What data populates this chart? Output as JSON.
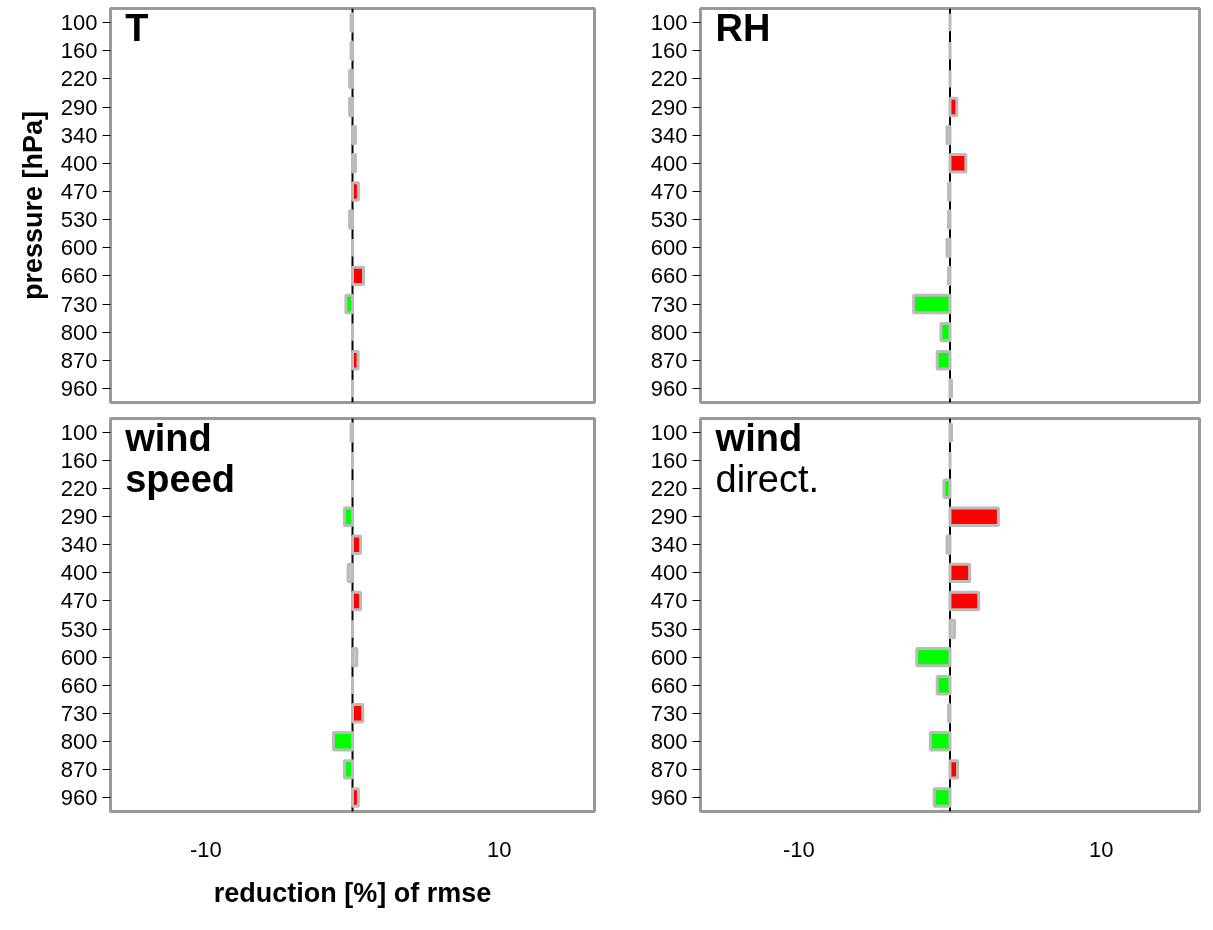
{
  "chart_data": [
    {
      "type": "bar",
      "orientation": "horizontal",
      "title": "T",
      "ylabel": "pressure [hPa]",
      "categories": [
        "100",
        "160",
        "220",
        "290",
        "340",
        "400",
        "470",
        "530",
        "600",
        "660",
        "730",
        "800",
        "870",
        "960"
      ],
      "values": [
        -0.1,
        -0.1,
        -0.2,
        -0.2,
        0.2,
        0.2,
        0.4,
        -0.2,
        0,
        0.75,
        -0.45,
        0,
        0.38,
        0
      ],
      "colors": [
        "#c8c8c8",
        "#c8c8c8",
        "#c8c8c8",
        "#c8c8c8",
        "#c8c8c8",
        "#c8c8c8",
        "#ff0000",
        "#c8c8c8",
        "#c8c8c8",
        "#ff0000",
        "#00ff00",
        "#c8c8c8",
        "#ff0000",
        "#c8c8c8"
      ],
      "xlim": [
        -16.5,
        16.5
      ],
      "xticks": [
        -10,
        10
      ],
      "tick_labels": "y",
      "grid": false,
      "ref_lines": [
        {
          "axis": "x",
          "value": 0,
          "label": null,
          "color": "#000000"
        }
      ]
    },
    {
      "type": "bar",
      "orientation": "horizontal",
      "title": "RH",
      "categories": [
        "100",
        "160",
        "220",
        "290",
        "340",
        "400",
        "470",
        "530",
        "600",
        "660",
        "730",
        "800",
        "870",
        "960"
      ],
      "values": [
        0,
        0,
        0,
        0.45,
        -0.2,
        1.05,
        -0.1,
        -0.1,
        -0.2,
        -0.1,
        -2.4,
        -0.6,
        -0.85,
        0.1
      ],
      "colors": [
        "#c8c8c8",
        "#c8c8c8",
        "#c8c8c8",
        "#ff0000",
        "#c8c8c8",
        "#ff0000",
        "#c8c8c8",
        "#c8c8c8",
        "#c8c8c8",
        "#c8c8c8",
        "#00ff00",
        "#00ff00",
        "#00ff00",
        "#c8c8c8"
      ],
      "xlim": [
        -16.5,
        16.5
      ],
      "xticks": [
        -10,
        10
      ],
      "tick_labels": "y",
      "grid": false,
      "ref_lines": [
        {
          "axis": "x",
          "value": 0,
          "label": null,
          "color": "#000000"
        }
      ]
    },
    {
      "type": "bar",
      "orientation": "horizontal",
      "title": "wind speed",
      "xlabel": "reduction [%] of rmse",
      "categories": [
        "100",
        "160",
        "220",
        "290",
        "340",
        "400",
        "470",
        "530",
        "600",
        "660",
        "730",
        "800",
        "870",
        "960"
      ],
      "values": [
        -0.1,
        0,
        0,
        -0.55,
        0.55,
        -0.3,
        0.55,
        0,
        0.3,
        0,
        0.7,
        -1.3,
        -0.55,
        0.4
      ],
      "colors": [
        "#c8c8c8",
        "#c8c8c8",
        "#c8c8c8",
        "#00ff00",
        "#ff0000",
        "#c8c8c8",
        "#ff0000",
        "#c8c8c8",
        "#c8c8c8",
        "#c8c8c8",
        "#ff0000",
        "#00ff00",
        "#00ff00",
        "#ff0000"
      ],
      "xlim": [
        -16.5,
        16.5
      ],
      "xticks": [
        -10,
        10
      ],
      "grid": false,
      "ref_lines": [
        {
          "axis": "x",
          "value": 0,
          "label": null,
          "color": "#000000"
        }
      ]
    },
    {
      "type": "bar",
      "orientation": "horizontal",
      "title": "wind",
      "subtitle": "direct.",
      "categories": [
        "100",
        "160",
        "220",
        "290",
        "340",
        "400",
        "470",
        "530",
        "600",
        "660",
        "730",
        "800",
        "870",
        "960"
      ],
      "values": [
        0.1,
        0,
        -0.4,
        3.2,
        -0.2,
        1.3,
        1.9,
        0.3,
        -2.2,
        -0.85,
        -0.1,
        -1.3,
        0.5,
        -1.05
      ],
      "colors": [
        "#c8c8c8",
        "#c8c8c8",
        "#00ff00",
        "#ff0000",
        "#c8c8c8",
        "#ff0000",
        "#ff0000",
        "#c8c8c8",
        "#00ff00",
        "#00ff00",
        "#c8c8c8",
        "#00ff00",
        "#ff0000",
        "#00ff00"
      ],
      "xlim": [
        -16.5,
        16.5
      ],
      "xticks": [
        -10,
        10
      ],
      "grid": false,
      "ref_lines": [
        {
          "axis": "x",
          "value": 0,
          "label": null,
          "color": "#000000"
        }
      ]
    }
  ]
}
